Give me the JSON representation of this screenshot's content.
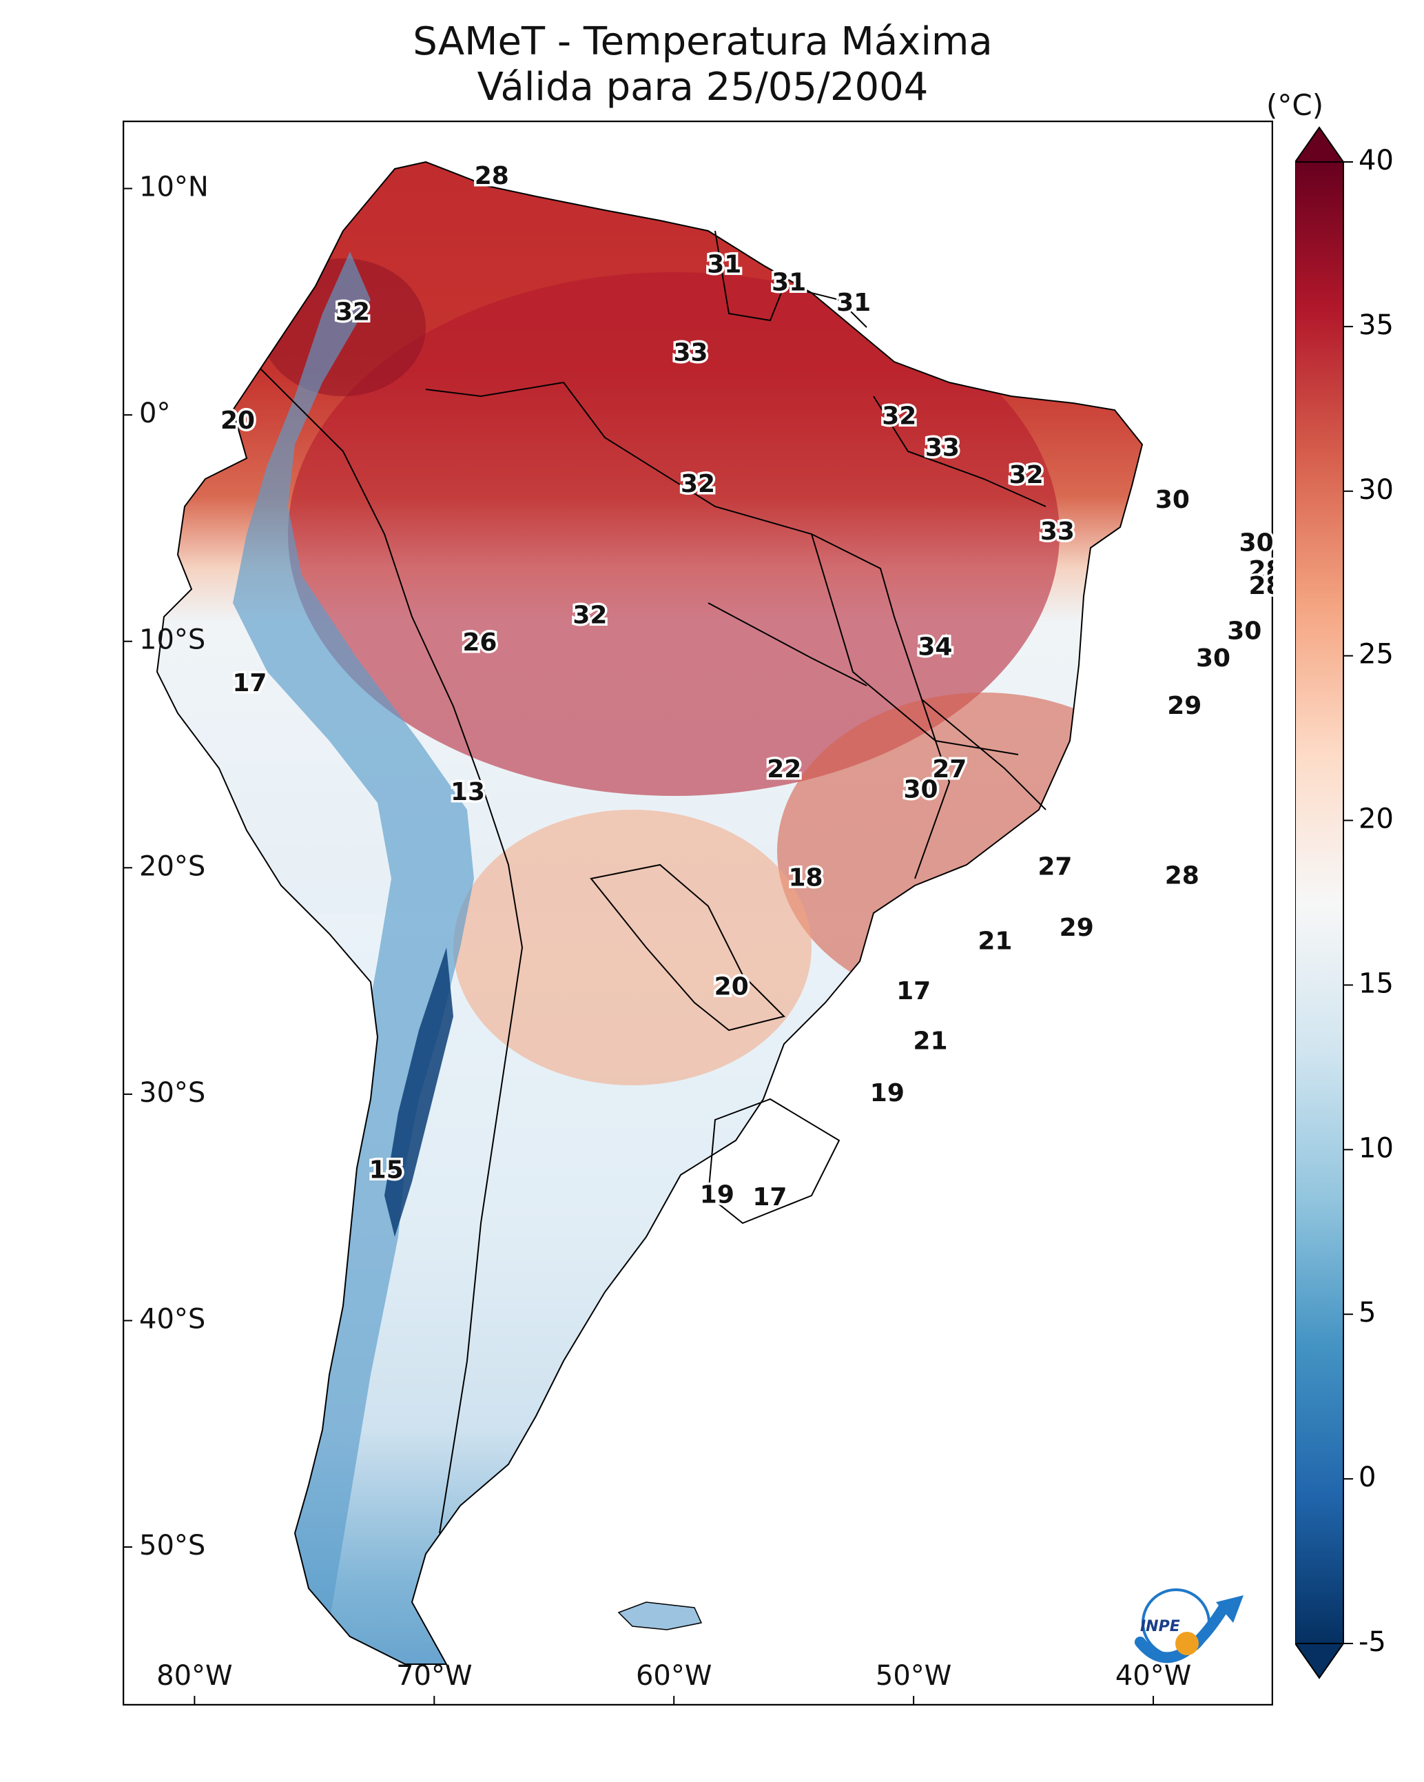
{
  "title": {
    "line1": "SAMeT - Temperatura Máxima",
    "line2": "Válida para 25/05/2004"
  },
  "map": {
    "extent": {
      "lon": [
        -83,
        -35
      ],
      "lat": [
        -57,
        13
      ]
    },
    "lon_ticks": [
      {
        "value": -80,
        "label": "80°W"
      },
      {
        "value": -70,
        "label": "70°W"
      },
      {
        "value": -60,
        "label": "60°W"
      },
      {
        "value": -50,
        "label": "50°W"
      },
      {
        "value": -40,
        "label": "40°W"
      }
    ],
    "lat_ticks": [
      {
        "value": 10,
        "label": "10°N"
      },
      {
        "value": 0,
        "label": "0°"
      },
      {
        "value": -10,
        "label": "10°S"
      },
      {
        "value": -20,
        "label": "20°S"
      },
      {
        "value": -30,
        "label": "30°S"
      },
      {
        "value": -40,
        "label": "40°S"
      },
      {
        "value": -50,
        "label": "50°S"
      }
    ],
    "ocean_color": "#ffffff",
    "border_color": "#000000",
    "labels": [
      {
        "lon": -67.6,
        "lat": 10.5,
        "value": "28"
      },
      {
        "lon": -73.4,
        "lat": 4.5,
        "value": "32"
      },
      {
        "lon": -57.9,
        "lat": 6.6,
        "value": "31"
      },
      {
        "lon": -55.2,
        "lat": 5.8,
        "value": "31"
      },
      {
        "lon": -52.5,
        "lat": 4.9,
        "value": "31"
      },
      {
        "lon": -59.3,
        "lat": 2.7,
        "value": "33"
      },
      {
        "lon": -78.2,
        "lat": -0.3,
        "value": "20"
      },
      {
        "lon": -50.6,
        "lat": -0.1,
        "value": "32"
      },
      {
        "lon": -48.8,
        "lat": -1.5,
        "value": "33"
      },
      {
        "lon": -45.3,
        "lat": -2.7,
        "value": "32"
      },
      {
        "lon": -59.0,
        "lat": -3.1,
        "value": "32"
      },
      {
        "lon": -39.2,
        "lat": -3.8,
        "value": "30"
      },
      {
        "lon": -44.0,
        "lat": -5.2,
        "value": "33"
      },
      {
        "lon": -35.7,
        "lat": -5.7,
        "value": "30"
      },
      {
        "lon": -35.3,
        "lat": -6.9,
        "value": "28"
      },
      {
        "lon": -35.3,
        "lat": -7.6,
        "value": "28"
      },
      {
        "lon": -63.5,
        "lat": -8.9,
        "value": "32"
      },
      {
        "lon": -68.1,
        "lat": -10.1,
        "value": "26"
      },
      {
        "lon": -49.1,
        "lat": -10.3,
        "value": "34"
      },
      {
        "lon": -36.2,
        "lat": -9.6,
        "value": "30"
      },
      {
        "lon": -37.5,
        "lat": -10.8,
        "value": "30"
      },
      {
        "lon": -77.7,
        "lat": -11.9,
        "value": "17"
      },
      {
        "lon": -38.7,
        "lat": -12.9,
        "value": "29"
      },
      {
        "lon": -55.4,
        "lat": -15.7,
        "value": "22"
      },
      {
        "lon": -48.5,
        "lat": -15.7,
        "value": "27"
      },
      {
        "lon": -49.7,
        "lat": -16.6,
        "value": "30"
      },
      {
        "lon": -68.6,
        "lat": -16.7,
        "value": "13"
      },
      {
        "lon": -44.1,
        "lat": -20.0,
        "value": "27"
      },
      {
        "lon": -38.8,
        "lat": -20.4,
        "value": "28"
      },
      {
        "lon": -54.5,
        "lat": -20.5,
        "value": "18"
      },
      {
        "lon": -43.2,
        "lat": -22.7,
        "value": "29"
      },
      {
        "lon": -46.6,
        "lat": -23.3,
        "value": "21"
      },
      {
        "lon": -57.6,
        "lat": -25.3,
        "value": "20"
      },
      {
        "lon": -50.0,
        "lat": -25.5,
        "value": "17"
      },
      {
        "lon": -49.3,
        "lat": -27.7,
        "value": "21"
      },
      {
        "lon": -51.1,
        "lat": -30.0,
        "value": "19"
      },
      {
        "lon": -72.0,
        "lat": -33.4,
        "value": "15"
      },
      {
        "lon": -58.2,
        "lat": -34.5,
        "value": "19"
      },
      {
        "lon": -56.0,
        "lat": -34.6,
        "value": "17"
      }
    ]
  },
  "colorbar": {
    "unit": "(°C)",
    "min": -5,
    "max": 40,
    "ticks": [
      {
        "value": 40,
        "label": "40"
      },
      {
        "value": 35,
        "label": "35"
      },
      {
        "value": 30,
        "label": "30"
      },
      {
        "value": 25,
        "label": "25"
      },
      {
        "value": 20,
        "label": "20"
      },
      {
        "value": 15,
        "label": "15"
      },
      {
        "value": 10,
        "label": "10"
      },
      {
        "value": 5,
        "label": "5"
      },
      {
        "value": 0,
        "label": "0"
      },
      {
        "value": -5,
        "label": "-5"
      }
    ],
    "colors": [
      "#053061",
      "#2166ac",
      "#4393c3",
      "#92c5de",
      "#d1e5f0",
      "#f7f7f7",
      "#fddbc7",
      "#f4a582",
      "#d6604d",
      "#b2182b",
      "#67001f"
    ]
  },
  "logo": {
    "text": "INPE"
  }
}
